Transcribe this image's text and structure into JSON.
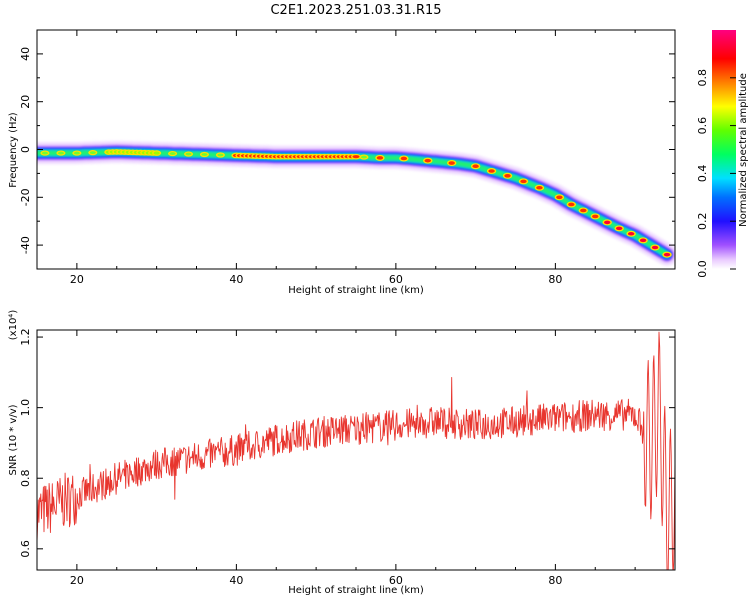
{
  "title": "C2E1.2023.251.03.31.R15",
  "colors": {
    "snr_line": "#e8352e",
    "background": "#ffffff",
    "axis": "#000000"
  },
  "chart_data": [
    {
      "type": "heatmap",
      "title": "C2E1.2023.251.03.31.R15",
      "xlabel": "Height of straight line (km)",
      "ylabel": "Frequency (Hz)",
      "xlim": [
        15,
        95
      ],
      "ylim": [
        -50,
        50
      ],
      "x_ticks": [
        20,
        40,
        60,
        80
      ],
      "y_ticks": [
        -40,
        -20,
        0,
        20,
        40
      ],
      "colorbar": {
        "label": "Normalized spectral amplitude",
        "range": [
          0,
          1
        ],
        "ticks": [
          0.0,
          0.2,
          0.4,
          0.6,
          0.8
        ],
        "colormap": "rainbow (white-violet-blue-cyan-green-yellow-red-magenta)"
      },
      "ridge": {
        "x": [
          15,
          20,
          25,
          30,
          35,
          40,
          45,
          50,
          55,
          58,
          60,
          62,
          65,
          68,
          70,
          72,
          75,
          78,
          80,
          82,
          85,
          88,
          90,
          92,
          94
        ],
        "y": [
          -1.5,
          -1.5,
          -1,
          -1.5,
          -2,
          -2.5,
          -3,
          -3,
          -3,
          -3.5,
          -3.5,
          -4,
          -5,
          -6,
          -7,
          -9,
          -12,
          -16,
          -19,
          -23,
          -28,
          -33,
          -36,
          -40,
          -44
        ]
      }
    },
    {
      "type": "line",
      "xlabel": "Height of straight line (km)",
      "ylabel": "SNR (10 * v/v)",
      "y_multiplier": "(x10⁴)",
      "xlim": [
        15,
        95
      ],
      "ylim": [
        0.54,
        1.22
      ],
      "x_ticks": [
        20,
        40,
        60,
        80
      ],
      "y_ticks": [
        0.6,
        0.8,
        1.0,
        1.2
      ],
      "trend": {
        "x": [
          15,
          17,
          20,
          25,
          30,
          35,
          40,
          45,
          50,
          55,
          60,
          65,
          70,
          75,
          80,
          85,
          90,
          92,
          93,
          94,
          95
        ],
        "y": [
          0.7,
          0.72,
          0.75,
          0.8,
          0.84,
          0.86,
          0.88,
          0.91,
          0.93,
          0.94,
          0.95,
          0.96,
          0.95,
          0.96,
          0.97,
          0.98,
          0.98,
          0.9,
          1.0,
          0.7,
          0.75
        ]
      }
    }
  ]
}
